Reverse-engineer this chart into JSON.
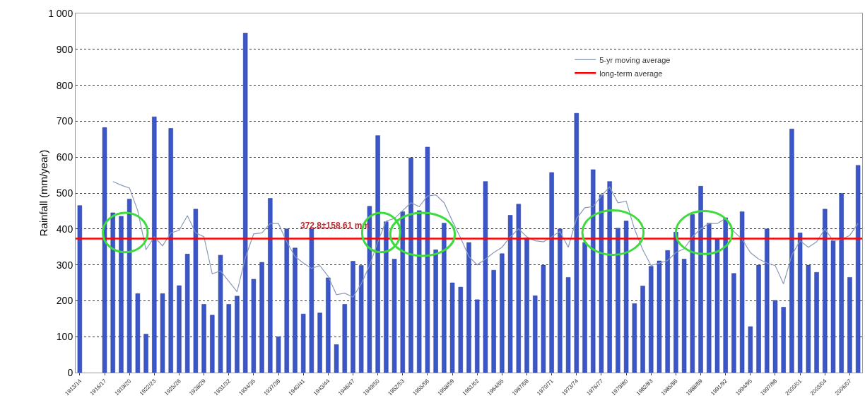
{
  "chart_data": {
    "type": "bar",
    "ylabel": "Rainfall (mm/year)",
    "categories": [
      "1913/14",
      null,
      null,
      "1916/17",
      null,
      null,
      "1919/20",
      null,
      null,
      "1922/23",
      null,
      null,
      "1925/26",
      null,
      null,
      "1928/29",
      null,
      null,
      "1931/32",
      null,
      null,
      "1934/35",
      null,
      null,
      "1937/38",
      null,
      null,
      "1940/41",
      null,
      null,
      "1943/44",
      null,
      null,
      "1946/47",
      null,
      null,
      "1949/50",
      null,
      null,
      "1952/53",
      null,
      null,
      "1955/56",
      null,
      null,
      "1958/59",
      null,
      null,
      "1961/62",
      null,
      null,
      "1964/65",
      null,
      null,
      "1967/68",
      null,
      null,
      "1970/71",
      null,
      null,
      "1973/74",
      null,
      null,
      "1976/77",
      null,
      null,
      "1979/80",
      null,
      null,
      "1982/83",
      null,
      null,
      "1985/86",
      null,
      null,
      "1988/89",
      null,
      null,
      "1991/92",
      null,
      null,
      "1994/95",
      null,
      null,
      "1997/98",
      null,
      null,
      "2000/01",
      null,
      null,
      "2003/04",
      null,
      null,
      "2006/07",
      null
    ],
    "series": [
      {
        "color": "#3a56c8",
        "values": [
          465,
          null,
          null,
          682,
          445,
          435,
          483,
          220,
          107,
          712,
          220,
          680,
          242,
          330,
          455,
          190,
          160,
          327,
          190,
          213,
          945,
          260,
          307,
          485,
          100,
          400,
          347,
          163,
          400,
          166,
          264,
          78,
          190,
          310,
          298,
          463,
          660,
          420,
          316,
          448,
          598,
          451,
          628,
          342,
          416,
          250,
          238,
          362,
          203,
          532,
          285,
          331,
          438,
          469,
          375,
          214,
          299,
          557,
          400,
          265,
          722,
          362,
          565,
          495,
          532,
          402,
          422,
          192,
          241,
          296,
          311,
          340,
          391,
          316,
          440,
          519,
          416,
          372,
          431,
          276,
          448,
          128,
          299,
          400,
          201,
          182,
          678,
          389,
          299,
          279,
          455,
          367,
          499,
          265,
          577
        ]
      },
      {
        "type": "line",
        "name": "5-yr moving average",
        "color": "#8899b8",
        "values": [
          null,
          null,
          null,
          null,
          532,
          522,
          514,
          451,
          342,
          378,
          353,
          389,
          396,
          437,
          389,
          378,
          275,
          283,
          254,
          225,
          320,
          386,
          389,
          415,
          415,
          364,
          323,
          305,
          290,
          298,
          268,
          217,
          221,
          210,
          247,
          298,
          364,
          422,
          429,
          451,
          473,
          462,
          492,
          495,
          473,
          422,
          375,
          323,
          300,
          316,
          334,
          349,
          378,
          400,
          378,
          367,
          364,
          378,
          393,
          349,
          429,
          459,
          462,
          492,
          517,
          473,
          477,
          400,
          342,
          298,
          305,
          312,
          334,
          345,
          378,
          400,
          415,
          415,
          429,
          393,
          371,
          334,
          316,
          305,
          298,
          247,
          327,
          367,
          349,
          364,
          400,
          367,
          371,
          382,
          415
        ]
      }
    ],
    "ylim": [
      0,
      1000
    ],
    "yticks": [
      0,
      100,
      200,
      300,
      400,
      500,
      600,
      700,
      800,
      900,
      {
        "value": 1000,
        "label": "1 000"
      }
    ],
    "grid": "y",
    "legend": "top right",
    "ref_lines": [
      {
        "axis": "y",
        "value": 372.8,
        "label": "long-term average",
        "color": "#ff0000"
      }
    ],
    "annotations": [
      "372.8±158.61 mm"
    ]
  }
}
